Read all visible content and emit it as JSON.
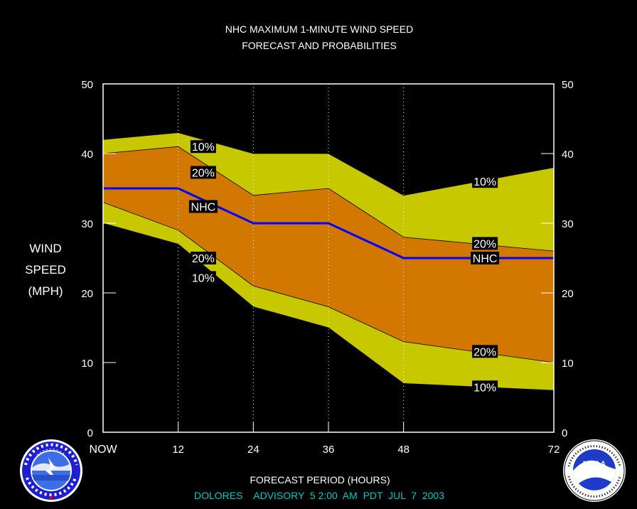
{
  "title_line1": "NHC MAXIMUM 1-MINUTE WIND SPEED",
  "title_line2": "FORECAST AND PROBABILITIES",
  "ylabel_lines": [
    "WIND",
    "SPEED",
    "(MPH)"
  ],
  "xlabel": "FORECAST PERIOD (HOURS)",
  "advisory": "DOLORES    ADVISORY  5 2:00  AM  PDT  JUL  7  2003",
  "colors": {
    "background": "#000000",
    "outer_band": "#c8c800",
    "inner_band": "#d27800",
    "nhc_line": "#0000ff",
    "frame": "#ffffff",
    "advisory_text": "#00c8c8"
  },
  "chart_data": {
    "type": "area",
    "x_ticks": [
      0,
      12,
      24,
      36,
      48,
      72
    ],
    "x_tick_labels": [
      "NOW",
      "12",
      "24",
      "36",
      "48",
      "72"
    ],
    "y_ticks": [
      0,
      10,
      20,
      30,
      40,
      50
    ],
    "xlim": [
      0,
      72
    ],
    "ylim": [
      0,
      50
    ],
    "grid": "vertical dotted at 12, 24, 36, 48",
    "x": [
      0,
      12,
      24,
      36,
      48,
      72
    ],
    "series": [
      {
        "name": "10%",
        "values": [
          42,
          43,
          40,
          40,
          34,
          38
        ]
      },
      {
        "name": "20%",
        "values": [
          40,
          41,
          34,
          35,
          28,
          26
        ]
      },
      {
        "name": "NHC",
        "values": [
          35,
          35,
          30,
          30,
          25,
          25
        ]
      },
      {
        "name": "20%",
        "values": [
          33,
          29,
          21,
          18,
          13,
          10
        ]
      },
      {
        "name": "10%",
        "values": [
          30,
          27,
          18,
          15,
          7,
          6
        ]
      }
    ],
    "annotations": [
      {
        "text": "10%",
        "x": 16,
        "y": 41
      },
      {
        "text": "20%",
        "x": 16,
        "y": 37.3
      },
      {
        "text": "NHC",
        "x": 16,
        "y": 32.4
      },
      {
        "text": "20%",
        "x": 16,
        "y": 25
      },
      {
        "text": "10%",
        "x": 16,
        "y": 22.2
      },
      {
        "text": "10%",
        "x": 61,
        "y": 36
      },
      {
        "text": "20%",
        "x": 61,
        "y": 27.1
      },
      {
        "text": "NHC",
        "x": 61,
        "y": 25
      },
      {
        "text": "20%",
        "x": 61,
        "y": 11.6
      },
      {
        "text": "10%",
        "x": 61,
        "y": 6.5
      }
    ]
  },
  "logos": {
    "left": {
      "name": "National Weather Service",
      "ring_text": "NATIONAL WEATHER SERVICE"
    },
    "right": {
      "name": "NOAA",
      "center_text": "NOAA",
      "ring_text": "NATIONAL OCEANIC AND ATMOSPHERIC ADMINISTRATION · U.S. DEPARTMENT OF COMMERCE"
    }
  }
}
